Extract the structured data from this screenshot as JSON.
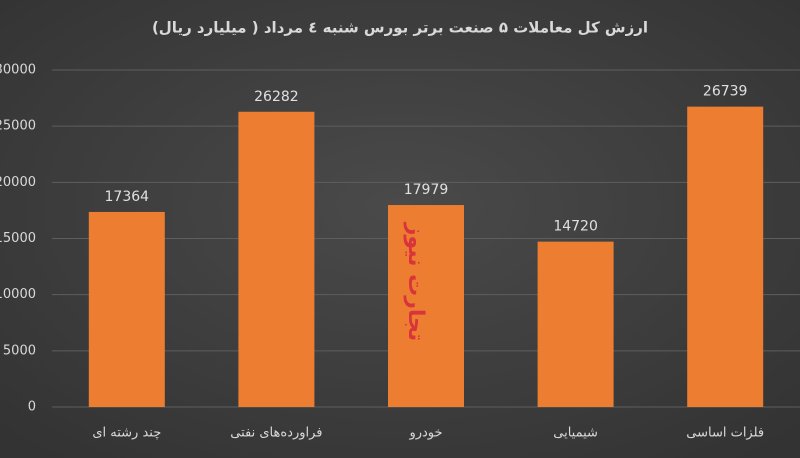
{
  "chart_data": {
    "type": "bar",
    "title": "ارزش کل معاملات ۵ صنعت برتر بورس شنبه ٤ مرداد ( میلیارد ریال)",
    "categories": [
      "چند رشته ای",
      "فراورده‌های نفتی",
      "خودرو",
      "شیمیایی",
      "فلزات اساسی"
    ],
    "values": [
      17364,
      26282,
      17979,
      14720,
      26739
    ],
    "color": "#ed7d31",
    "ylim": [
      0,
      30000
    ],
    "yticks": [
      0,
      5000,
      10000,
      15000,
      20000,
      25000,
      30000
    ],
    "grid": true,
    "watermark": "تجارت نیوز"
  }
}
